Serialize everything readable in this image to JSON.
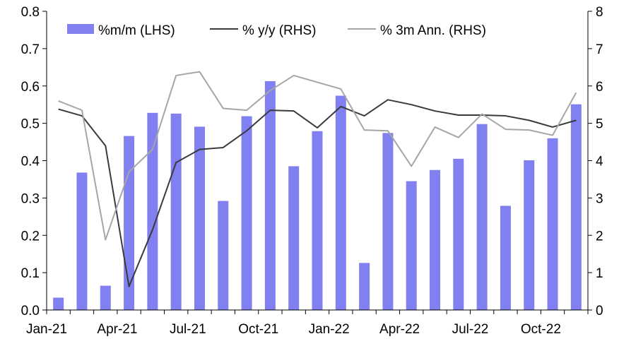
{
  "chart_data": {
    "type": "bar+line",
    "title": "",
    "x": [
      "Jan-21",
      "Feb-21",
      "Mar-21",
      "Apr-21",
      "May-21",
      "Jun-21",
      "Jul-21",
      "Aug-21",
      "Sep-21",
      "Oct-21",
      "Nov-21",
      "Dec-21",
      "Jan-22",
      "Feb-22",
      "Mar-22",
      "Apr-22",
      "May-22",
      "Jun-22",
      "Jul-22",
      "Aug-22",
      "Sep-22",
      "Oct-22",
      "Nov-22"
    ],
    "x_tick_labels": [
      "Jan-21",
      "Apr-21",
      "Jul-21",
      "Oct-21",
      "Jan-22",
      "Apr-22",
      "Jul-22",
      "Oct-22"
    ],
    "y_left": {
      "min": 0,
      "max": 0.8,
      "ticks": [
        "0.0",
        "0.1",
        "0.2",
        "0.3",
        "0.4",
        "0.5",
        "0.6",
        "0.7",
        "0.8"
      ]
    },
    "y_right": {
      "min": 0,
      "max": 8,
      "ticks": [
        "0",
        "1",
        "2",
        "3",
        "4",
        "5",
        "6",
        "7",
        "8"
      ]
    },
    "series": [
      {
        "name": "%m/m (LHS)",
        "kind": "bar",
        "axis": "left",
        "color": "#8080f0",
        "values": [
          0.033,
          0.368,
          0.065,
          0.466,
          0.528,
          0.526,
          0.491,
          0.292,
          0.519,
          0.613,
          0.385,
          0.479,
          0.574,
          0.126,
          0.474,
          0.345,
          0.375,
          0.405,
          0.498,
          0.279,
          0.401,
          0.46,
          0.551
        ]
      },
      {
        "name": "% y/y (RHS)",
        "kind": "line",
        "axis": "right",
        "color": "#3a3a3a",
        "values": [
          5.38,
          5.2,
          4.4,
          0.63,
          2.15,
          3.95,
          4.3,
          4.35,
          4.8,
          5.35,
          5.33,
          4.88,
          5.45,
          5.2,
          5.63,
          5.5,
          5.33,
          5.22,
          5.22,
          5.2,
          5.08,
          4.9,
          5.08
        ]
      },
      {
        "name": "% 3m Ann. (RHS)",
        "kind": "line",
        "axis": "right",
        "color": "#a6a6a6",
        "values": [
          5.6,
          5.35,
          1.88,
          3.7,
          4.3,
          6.28,
          6.38,
          5.4,
          5.35,
          5.88,
          6.28,
          6.1,
          5.92,
          4.82,
          4.8,
          3.85,
          4.9,
          4.62,
          5.25,
          4.84,
          4.82,
          4.68,
          5.82
        ]
      }
    ],
    "legend": "top"
  }
}
